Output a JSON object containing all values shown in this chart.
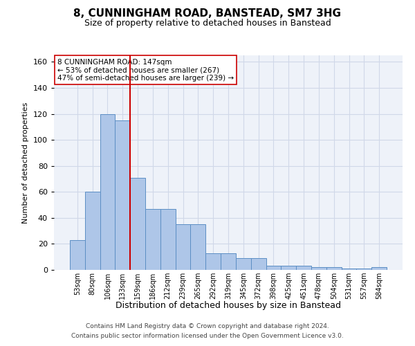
{
  "title": "8, CUNNINGHAM ROAD, BANSTEAD, SM7 3HG",
  "subtitle": "Size of property relative to detached houses in Banstead",
  "xlabel": "Distribution of detached houses by size in Banstead",
  "ylabel": "Number of detached properties",
  "bar_labels": [
    "53sqm",
    "80sqm",
    "106sqm",
    "133sqm",
    "159sqm",
    "186sqm",
    "212sqm",
    "239sqm",
    "265sqm",
    "292sqm",
    "319sqm",
    "345sqm",
    "372sqm",
    "398sqm",
    "425sqm",
    "451sqm",
    "478sqm",
    "504sqm",
    "531sqm",
    "557sqm",
    "584sqm"
  ],
  "bar_values": [
    23,
    60,
    120,
    115,
    71,
    47,
    47,
    35,
    35,
    13,
    13,
    9,
    9,
    3,
    3,
    3,
    2,
    2,
    1,
    1,
    2
  ],
  "bar_color": "#aec6e8",
  "bar_edge_color": "#5b8ec4",
  "vline_color": "#cc0000",
  "annotation_text": "8 CUNNINGHAM ROAD: 147sqm\n← 53% of detached houses are smaller (267)\n47% of semi-detached houses are larger (239) →",
  "annotation_box_color": "#ffffff",
  "annotation_box_edge": "#cc0000",
  "ylim": [
    0,
    165
  ],
  "yticks": [
    0,
    20,
    40,
    60,
    80,
    100,
    120,
    140,
    160
  ],
  "grid_color": "#d0d8e8",
  "bg_color": "#eef2f9",
  "footer_line1": "Contains HM Land Registry data © Crown copyright and database right 2024.",
  "footer_line2": "Contains public sector information licensed under the Open Government Licence v3.0."
}
